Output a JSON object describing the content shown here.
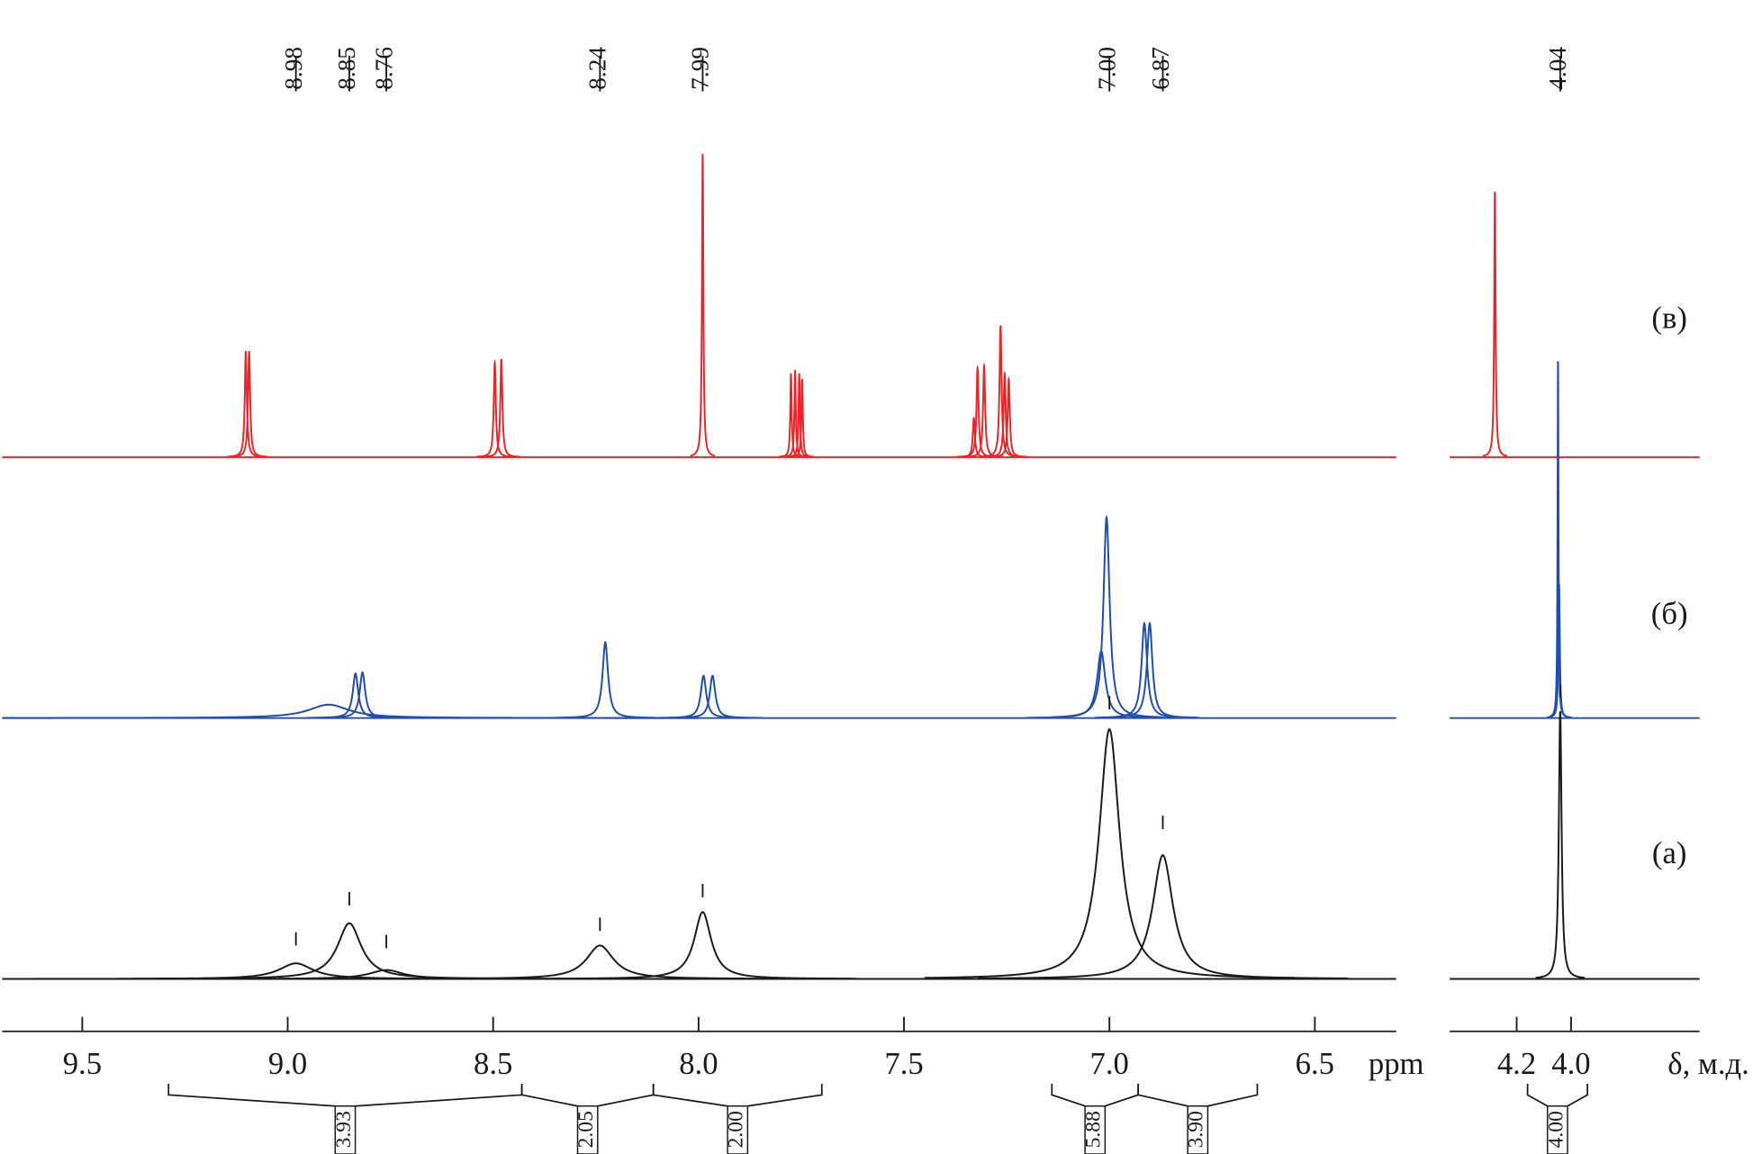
{
  "chart_data": {
    "type": "nmr",
    "x_label": "ppm",
    "x2_label": "δ, м.д.",
    "xlim": [
      9.695,
      6.302
    ],
    "xticks": [
      9.5,
      {
        "value": 9,
        "label": "9.0"
      },
      8.5,
      {
        "value": 8,
        "label": "8.0"
      },
      7.5,
      {
        "value": 7,
        "label": "7.0"
      },
      6.5
    ],
    "x2lim": [
      4.446,
      3.528
    ],
    "x2ticks": [
      4.2,
      {
        "value": 4,
        "label": "4.0"
      }
    ],
    "ylim": [
      0,
      300
    ],
    "peak_labels": [
      8.98,
      8.85,
      8.76,
      8.24,
      7.99,
      {
        "value": 7,
        "label": "7.00"
      },
      6.87,
      4.04
    ],
    "series": [
      {
        "name": "(в)",
        "color": "#e8262a",
        "peaks": [
          {
            "x": 9.102,
            "height": 95,
            "width": 0.003
          },
          {
            "x": 9.094,
            "height": 95,
            "width": 0.003
          },
          {
            "x": 8.496,
            "height": 85,
            "width": 0.003
          },
          {
            "x": 8.48,
            "height": 88,
            "width": 0.003
          },
          {
            "x": 7.99,
            "height": 272,
            "width": 0.002
          },
          {
            "x": 7.775,
            "height": 75,
            "width": 0.002
          },
          {
            "x": 7.765,
            "height": 78,
            "width": 0.002
          },
          {
            "x": 7.755,
            "height": 75,
            "width": 0.002
          },
          {
            "x": 7.748,
            "height": 70,
            "width": 0.002
          },
          {
            "x": 7.33,
            "height": 35,
            "width": 0.003
          },
          {
            "x": 7.321,
            "height": 80,
            "width": 0.003
          },
          {
            "x": 7.305,
            "height": 82,
            "width": 0.003
          },
          {
            "x": 7.265,
            "height": 118,
            "width": 0.003
          },
          {
            "x": 7.255,
            "height": 75,
            "width": 0.003
          },
          {
            "x": 7.245,
            "height": 70,
            "width": 0.003
          },
          {
            "x": 4.28,
            "height": 238,
            "width": 0.003
          }
        ]
      },
      {
        "name": "(б)",
        "color": "#1f4fa8",
        "peaks": [
          {
            "x": 8.9,
            "height": 12,
            "width": 0.06
          },
          {
            "x": 8.835,
            "height": 40,
            "width": 0.008
          },
          {
            "x": 8.818,
            "height": 41,
            "width": 0.008
          },
          {
            "x": 8.227,
            "height": 68,
            "width": 0.008
          },
          {
            "x": 7.988,
            "height": 38,
            "width": 0.008
          },
          {
            "x": 7.966,
            "height": 38,
            "width": 0.008
          },
          {
            "x": 7.02,
            "height": 60,
            "width": 0.012
          },
          {
            "x": 7.007,
            "height": 180,
            "width": 0.009
          },
          {
            "x": 6.915,
            "height": 85,
            "width": 0.008
          },
          {
            "x": 6.902,
            "height": 85,
            "width": 0.008
          },
          {
            "x": 4.048,
            "height": 320,
            "width": 0.002
          },
          {
            "x": 4.044,
            "height": 120,
            "width": 0.003
          }
        ]
      },
      {
        "name": "(а)",
        "color": "#1a1a1a",
        "peaks": [
          {
            "x": 8.98,
            "height": 14,
            "width": 0.05
          },
          {
            "x": 8.85,
            "height": 50,
            "width": 0.035
          },
          {
            "x": 8.76,
            "height": 8,
            "width": 0.05
          },
          {
            "x": 8.24,
            "height": 30,
            "width": 0.04
          },
          {
            "x": 7.99,
            "height": 60,
            "width": 0.025
          },
          {
            "x": 7.0,
            "height": 224,
            "width": 0.03
          },
          {
            "x": 6.87,
            "height": 111,
            "width": 0.03
          },
          {
            "x": 4.04,
            "height": 240,
            "width": 0.006
          }
        ]
      }
    ],
    "integrals": [
      {
        "from": 9.29,
        "to": 8.43,
        "value": 3.93
      },
      {
        "from": 8.43,
        "to": 8.11,
        "value": 2.05
      },
      {
        "from": 8.11,
        "to": 7.7,
        "value": {
          "value": 2,
          "label": "2.00"
        }
      },
      {
        "from": 7.14,
        "to": 6.93,
        "value": 5.88
      },
      {
        "from": 6.93,
        "to": 6.64,
        "value": {
          "value": 3.9,
          "label": "3.90"
        }
      },
      {
        "from": 4.16,
        "to": 3.94,
        "value": {
          "value": 4,
          "label": "4.00"
        }
      }
    ]
  }
}
